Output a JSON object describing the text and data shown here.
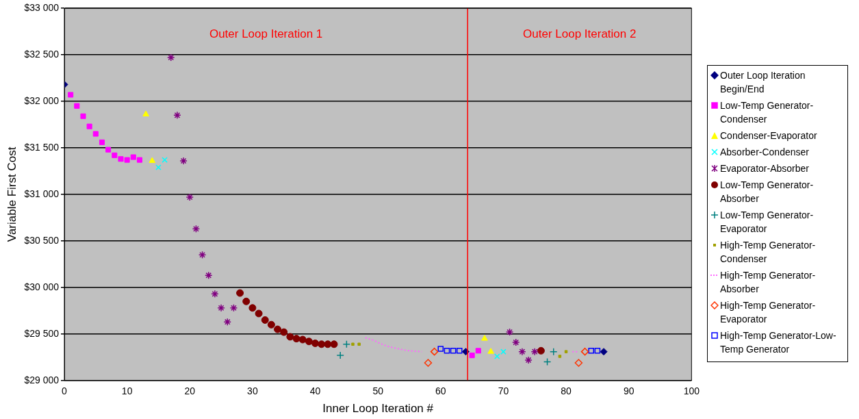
{
  "chart_data": {
    "type": "scatter",
    "xlabel": "Inner Loop Iteration #",
    "ylabel": "Variable First Cost",
    "xlim": [
      0,
      100
    ],
    "xticks": [
      0,
      10,
      20,
      30,
      40,
      50,
      60,
      70,
      80,
      90,
      100
    ],
    "ylim": [
      29000,
      33000
    ],
    "yticks": [
      {
        "value": 29000,
        "label": "$29 000"
      },
      {
        "value": 29500,
        "label": "$29 500"
      },
      {
        "value": 30000,
        "label": "$30 000"
      },
      {
        "value": 30500,
        "label": "$30 500"
      },
      {
        "value": 31000,
        "label": "$31 000"
      },
      {
        "value": 31500,
        "label": "$31 500"
      },
      {
        "value": 32000,
        "label": "$32 000"
      },
      {
        "value": 32500,
        "label": "$32 500"
      },
      {
        "value": 33000,
        "label": "$33 000"
      }
    ],
    "grid": "y",
    "legend": "right",
    "ref_lines": [
      {
        "axis": "x",
        "value": 64.3,
        "color": "#ff0000"
      }
    ],
    "annotations": [
      "Outer Loop Iteration 1",
      "Outer Loop Iteration 2"
    ],
    "series": [
      {
        "name": "Outer Loop Iteration Begin/End",
        "color": "#000080",
        "marker": "diamond",
        "x": [
          0,
          64,
          86
        ],
        "values": [
          32180,
          29310,
          29310
        ]
      },
      {
        "name": "Low-Temp Generator-Condenser",
        "color": "#ff00ff",
        "marker": "square",
        "x": [
          1,
          2,
          3,
          4,
          5,
          6,
          7,
          8,
          9,
          10,
          11,
          12,
          65,
          66
        ],
        "values": [
          32070,
          31950,
          31840,
          31730,
          31650,
          31560,
          31480,
          31420,
          31380,
          31370,
          31400,
          31370,
          29270,
          29320
        ]
      },
      {
        "name": "Condenser-Evaporator",
        "color": "#ffff00",
        "marker": "triangle",
        "x": [
          13,
          14,
          67,
          68
        ],
        "values": [
          31860,
          31360,
          29450,
          29310
        ]
      },
      {
        "name": "Absorber-Condenser",
        "color": "#00ffff",
        "marker": "cross",
        "x": [
          15,
          16,
          69,
          70
        ],
        "values": [
          31290,
          31370,
          29260,
          29310
        ]
      },
      {
        "name": "Evaporator-Absorber",
        "color": "#800080",
        "marker": "cross",
        "x": [
          17,
          18,
          19,
          20,
          21,
          22,
          23,
          24,
          25,
          26,
          27,
          71,
          72,
          73,
          74,
          75
        ],
        "values": [
          32470,
          31850,
          31360,
          30970,
          30630,
          30350,
          30130,
          29930,
          29780,
          29630,
          29780,
          29520,
          29410,
          29310,
          29220,
          29310
        ]
      },
      {
        "name": "Low-Temp Generator-Absorber",
        "color": "#800000",
        "marker": "circle",
        "x": [
          28,
          29,
          30,
          31,
          32,
          33,
          34,
          35,
          36,
          37,
          38,
          39,
          40,
          41,
          42,
          43,
          76
        ],
        "values": [
          29940,
          29850,
          29780,
          29720,
          29650,
          29600,
          29550,
          29520,
          29470,
          29450,
          29440,
          29420,
          29400,
          29390,
          29390,
          29390,
          29320
        ]
      },
      {
        "name": "Low-Temp Generator-Evaporator",
        "color": "#008080",
        "marker": "cross",
        "x": [
          44,
          45,
          77,
          78
        ],
        "values": [
          29270,
          29390,
          29200,
          29310
        ]
      },
      {
        "name": "High-Temp Generator-Condenser",
        "color": "#a0a000",
        "marker": "square",
        "x": [
          46,
          47,
          79,
          80
        ],
        "values": [
          29390,
          29390,
          29260,
          29310
        ]
      },
      {
        "name": "High-Temp Generator-Absorber",
        "color": "#ff66ff",
        "type": "line",
        "marker": "none",
        "line_style": "dotted",
        "x": [
          48,
          49,
          50,
          51,
          52,
          53,
          54,
          55,
          56,
          57,
          null,
          81,
          82
        ],
        "values": [
          29460,
          29440,
          29410,
          29380,
          29360,
          29345,
          29330,
          29320,
          29315,
          29310,
          null,
          29310,
          29310
        ]
      },
      {
        "name": "High-Temp Generator-Evaporator",
        "color": "#ff3300",
        "marker": "diamond",
        "x": [
          58,
          59,
          82,
          83
        ],
        "values": [
          29190,
          29310,
          29190,
          29310
        ]
      },
      {
        "name": "High-Temp Generator-Low-Temp Generator",
        "color": "#0000ff",
        "marker": "square",
        "x": [
          60,
          61,
          62,
          63,
          84,
          85
        ],
        "values": [
          29340,
          29320,
          29320,
          29320,
          29320,
          29320
        ]
      }
    ]
  }
}
